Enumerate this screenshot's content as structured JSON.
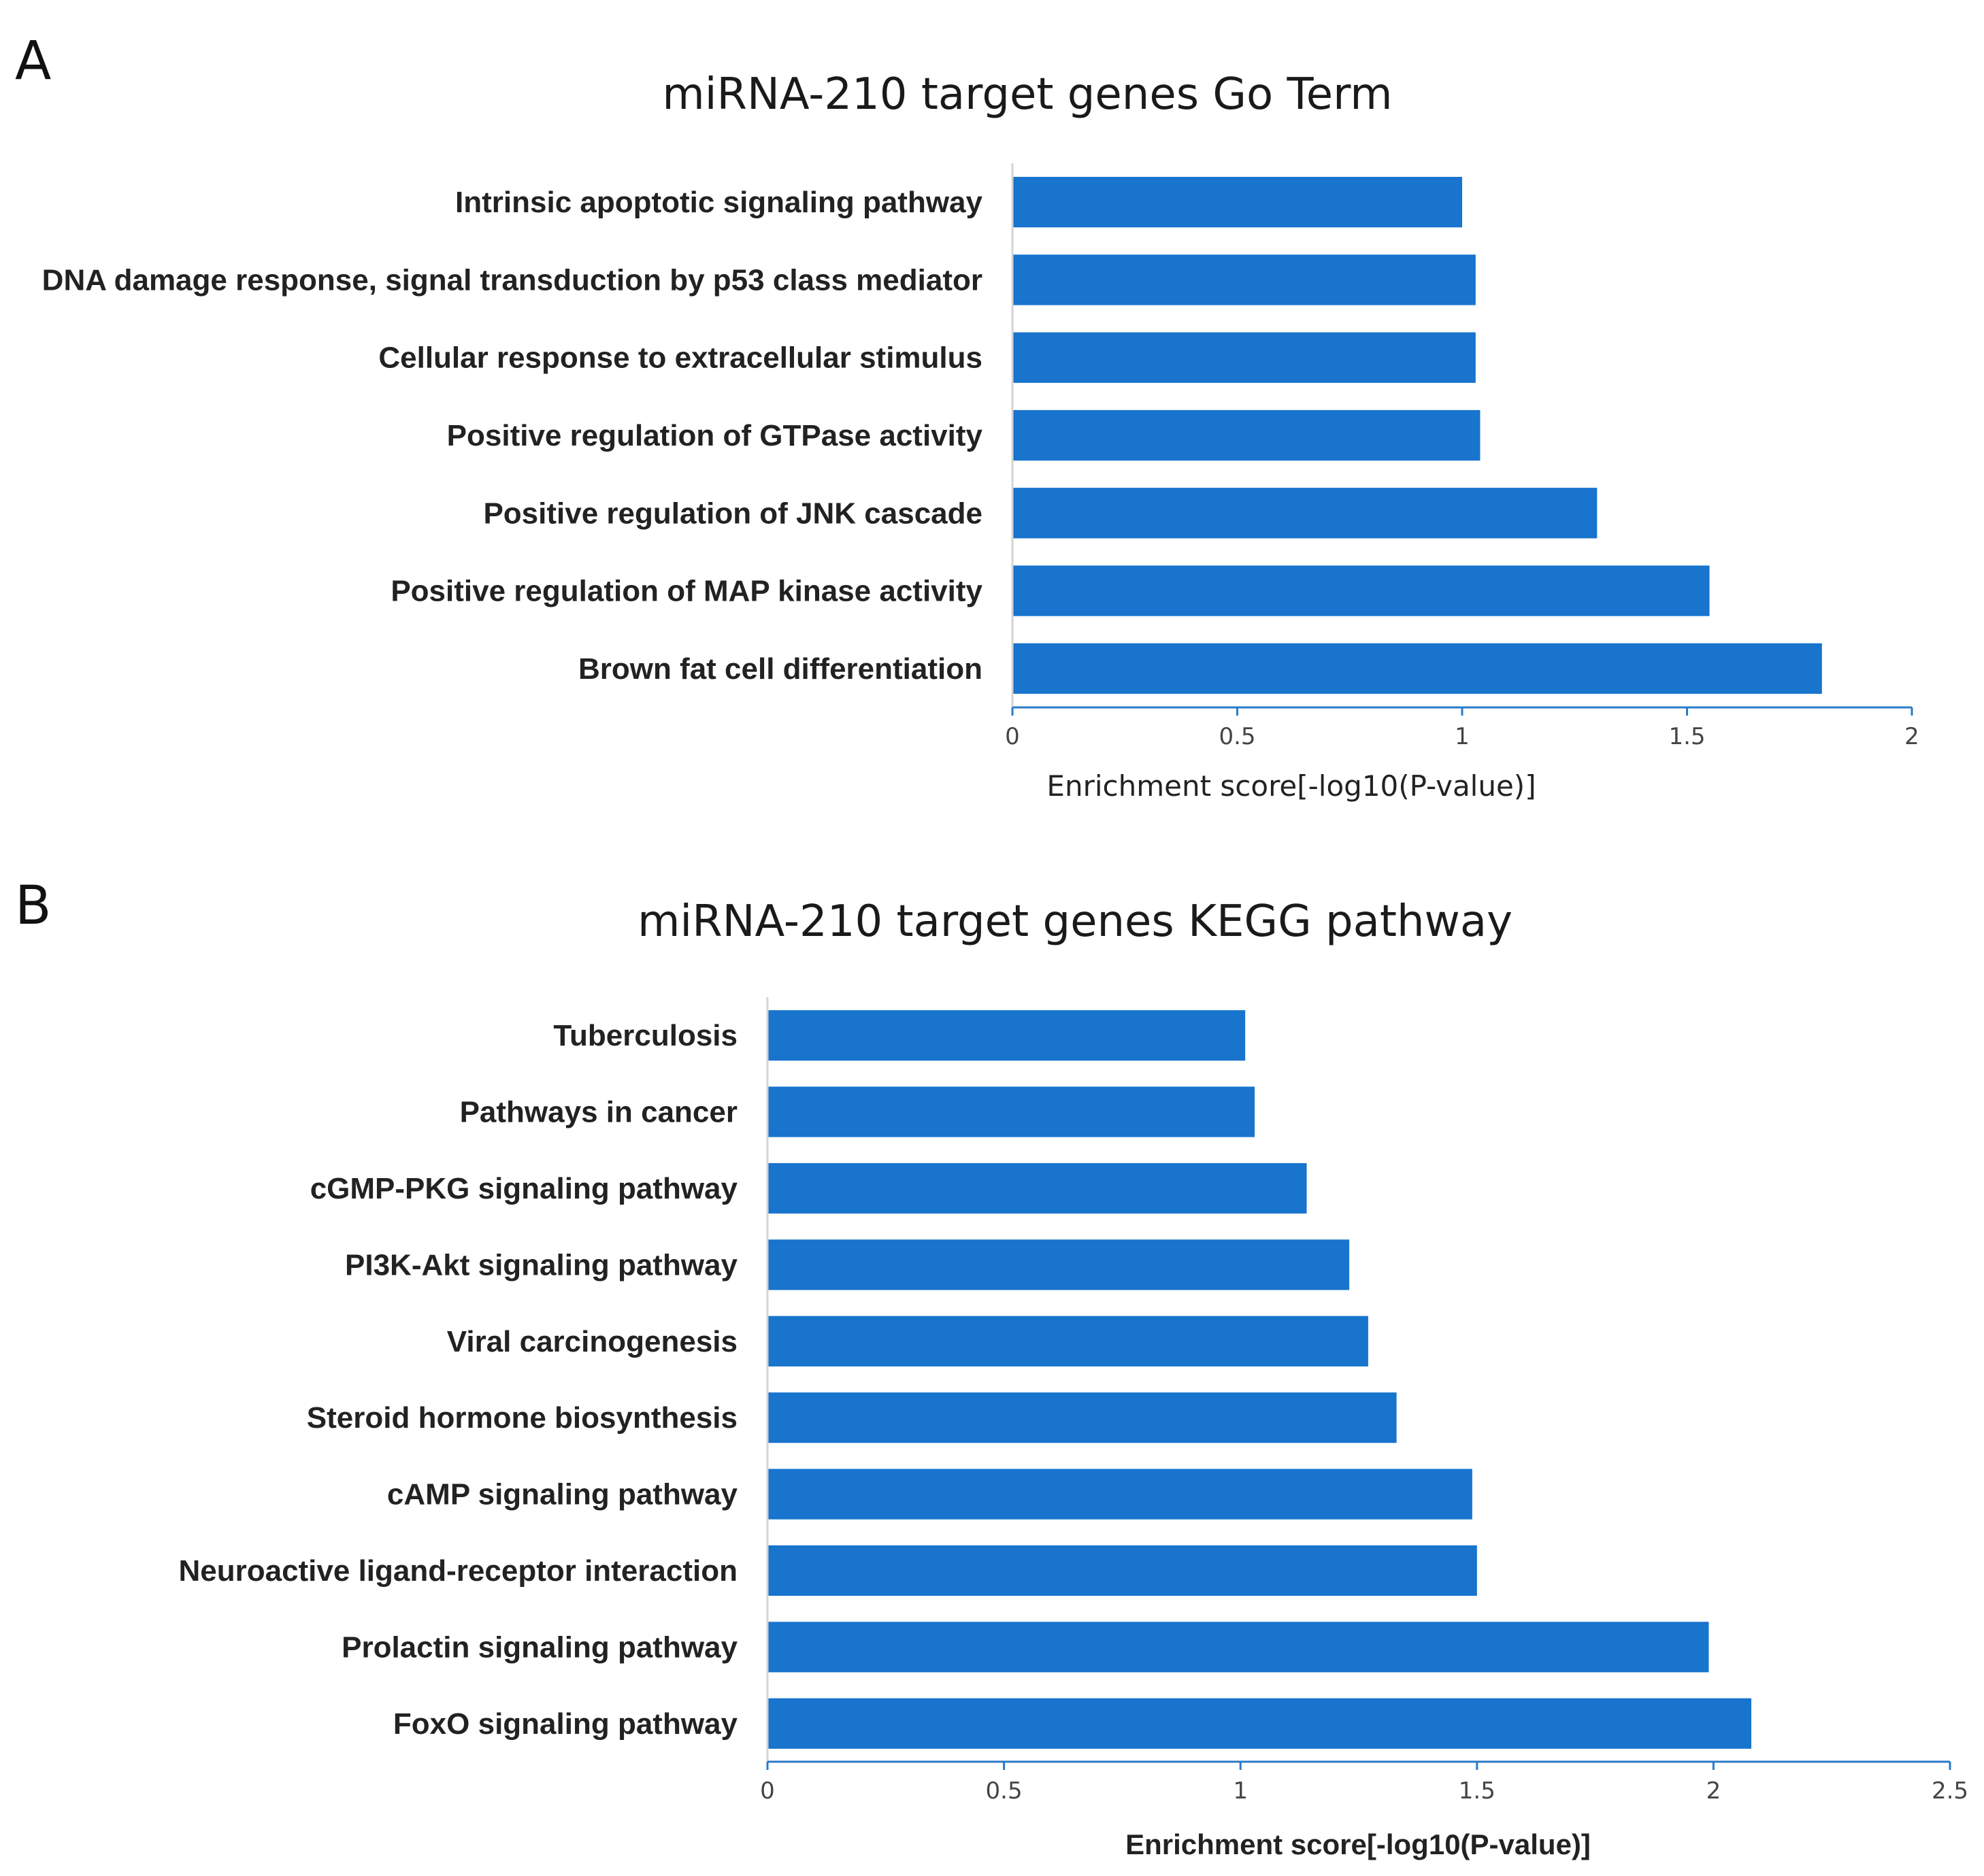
{
  "panels": [
    {
      "letter": "A"
    },
    {
      "letter": "B"
    }
  ],
  "colors": {
    "bar": "#1874CD",
    "axis": "#2A7AC9",
    "text": "#222222"
  },
  "chart_data": [
    {
      "type": "bar",
      "orientation": "horizontal",
      "title": "miRNA-210 target genes Go Term",
      "xlabel": "Enrichment score[-log10(P-value)]",
      "ylabel": "",
      "categories": [
        "Intrinsic apoptotic signaling pathway",
        "DNA damage response, signal transduction by p53 class mediator",
        "Cellular response to extracellular stimulus",
        "Positive regulation of GTPase activity",
        "Positive regulation of JNK cascade",
        "Positive regulation of MAP kinase activity",
        "Brown fat cell differentiation"
      ],
      "values": [
        1.0,
        1.03,
        1.03,
        1.04,
        1.3,
        1.55,
        1.8
      ],
      "xlim": [
        0,
        2
      ],
      "xticks": [
        0,
        0.5,
        1,
        1.5,
        2
      ],
      "xtick_labels": [
        "0",
        "0.5",
        "1",
        "1.5",
        "2"
      ],
      "grid": false,
      "legend": "none"
    },
    {
      "type": "bar",
      "orientation": "horizontal",
      "title": "miRNA-210 target genes KEGG pathway",
      "xlabel": "Enrichment score[-log10(P-value)]",
      "ylabel": "",
      "categories": [
        "Tuberculosis",
        "Pathways in cancer",
        "cGMP-PKG signaling pathway",
        "PI3K-Akt signaling pathway",
        "Viral carcinogenesis",
        "Steroid hormone biosynthesis",
        "cAMP signaling pathway",
        "Neuroactive ligand-receptor interaction",
        "Prolactin signaling pathway",
        "FoxO signaling pathway"
      ],
      "values": [
        1.01,
        1.03,
        1.14,
        1.23,
        1.27,
        1.33,
        1.49,
        1.5,
        1.99,
        2.08
      ],
      "xlim": [
        0,
        2.5
      ],
      "xticks": [
        0,
        0.5,
        1,
        1.5,
        2,
        2.5
      ],
      "xtick_labels": [
        "0",
        "0.5",
        "1",
        "1.5",
        "2",
        "2.5"
      ],
      "grid": false,
      "legend": "none"
    }
  ]
}
